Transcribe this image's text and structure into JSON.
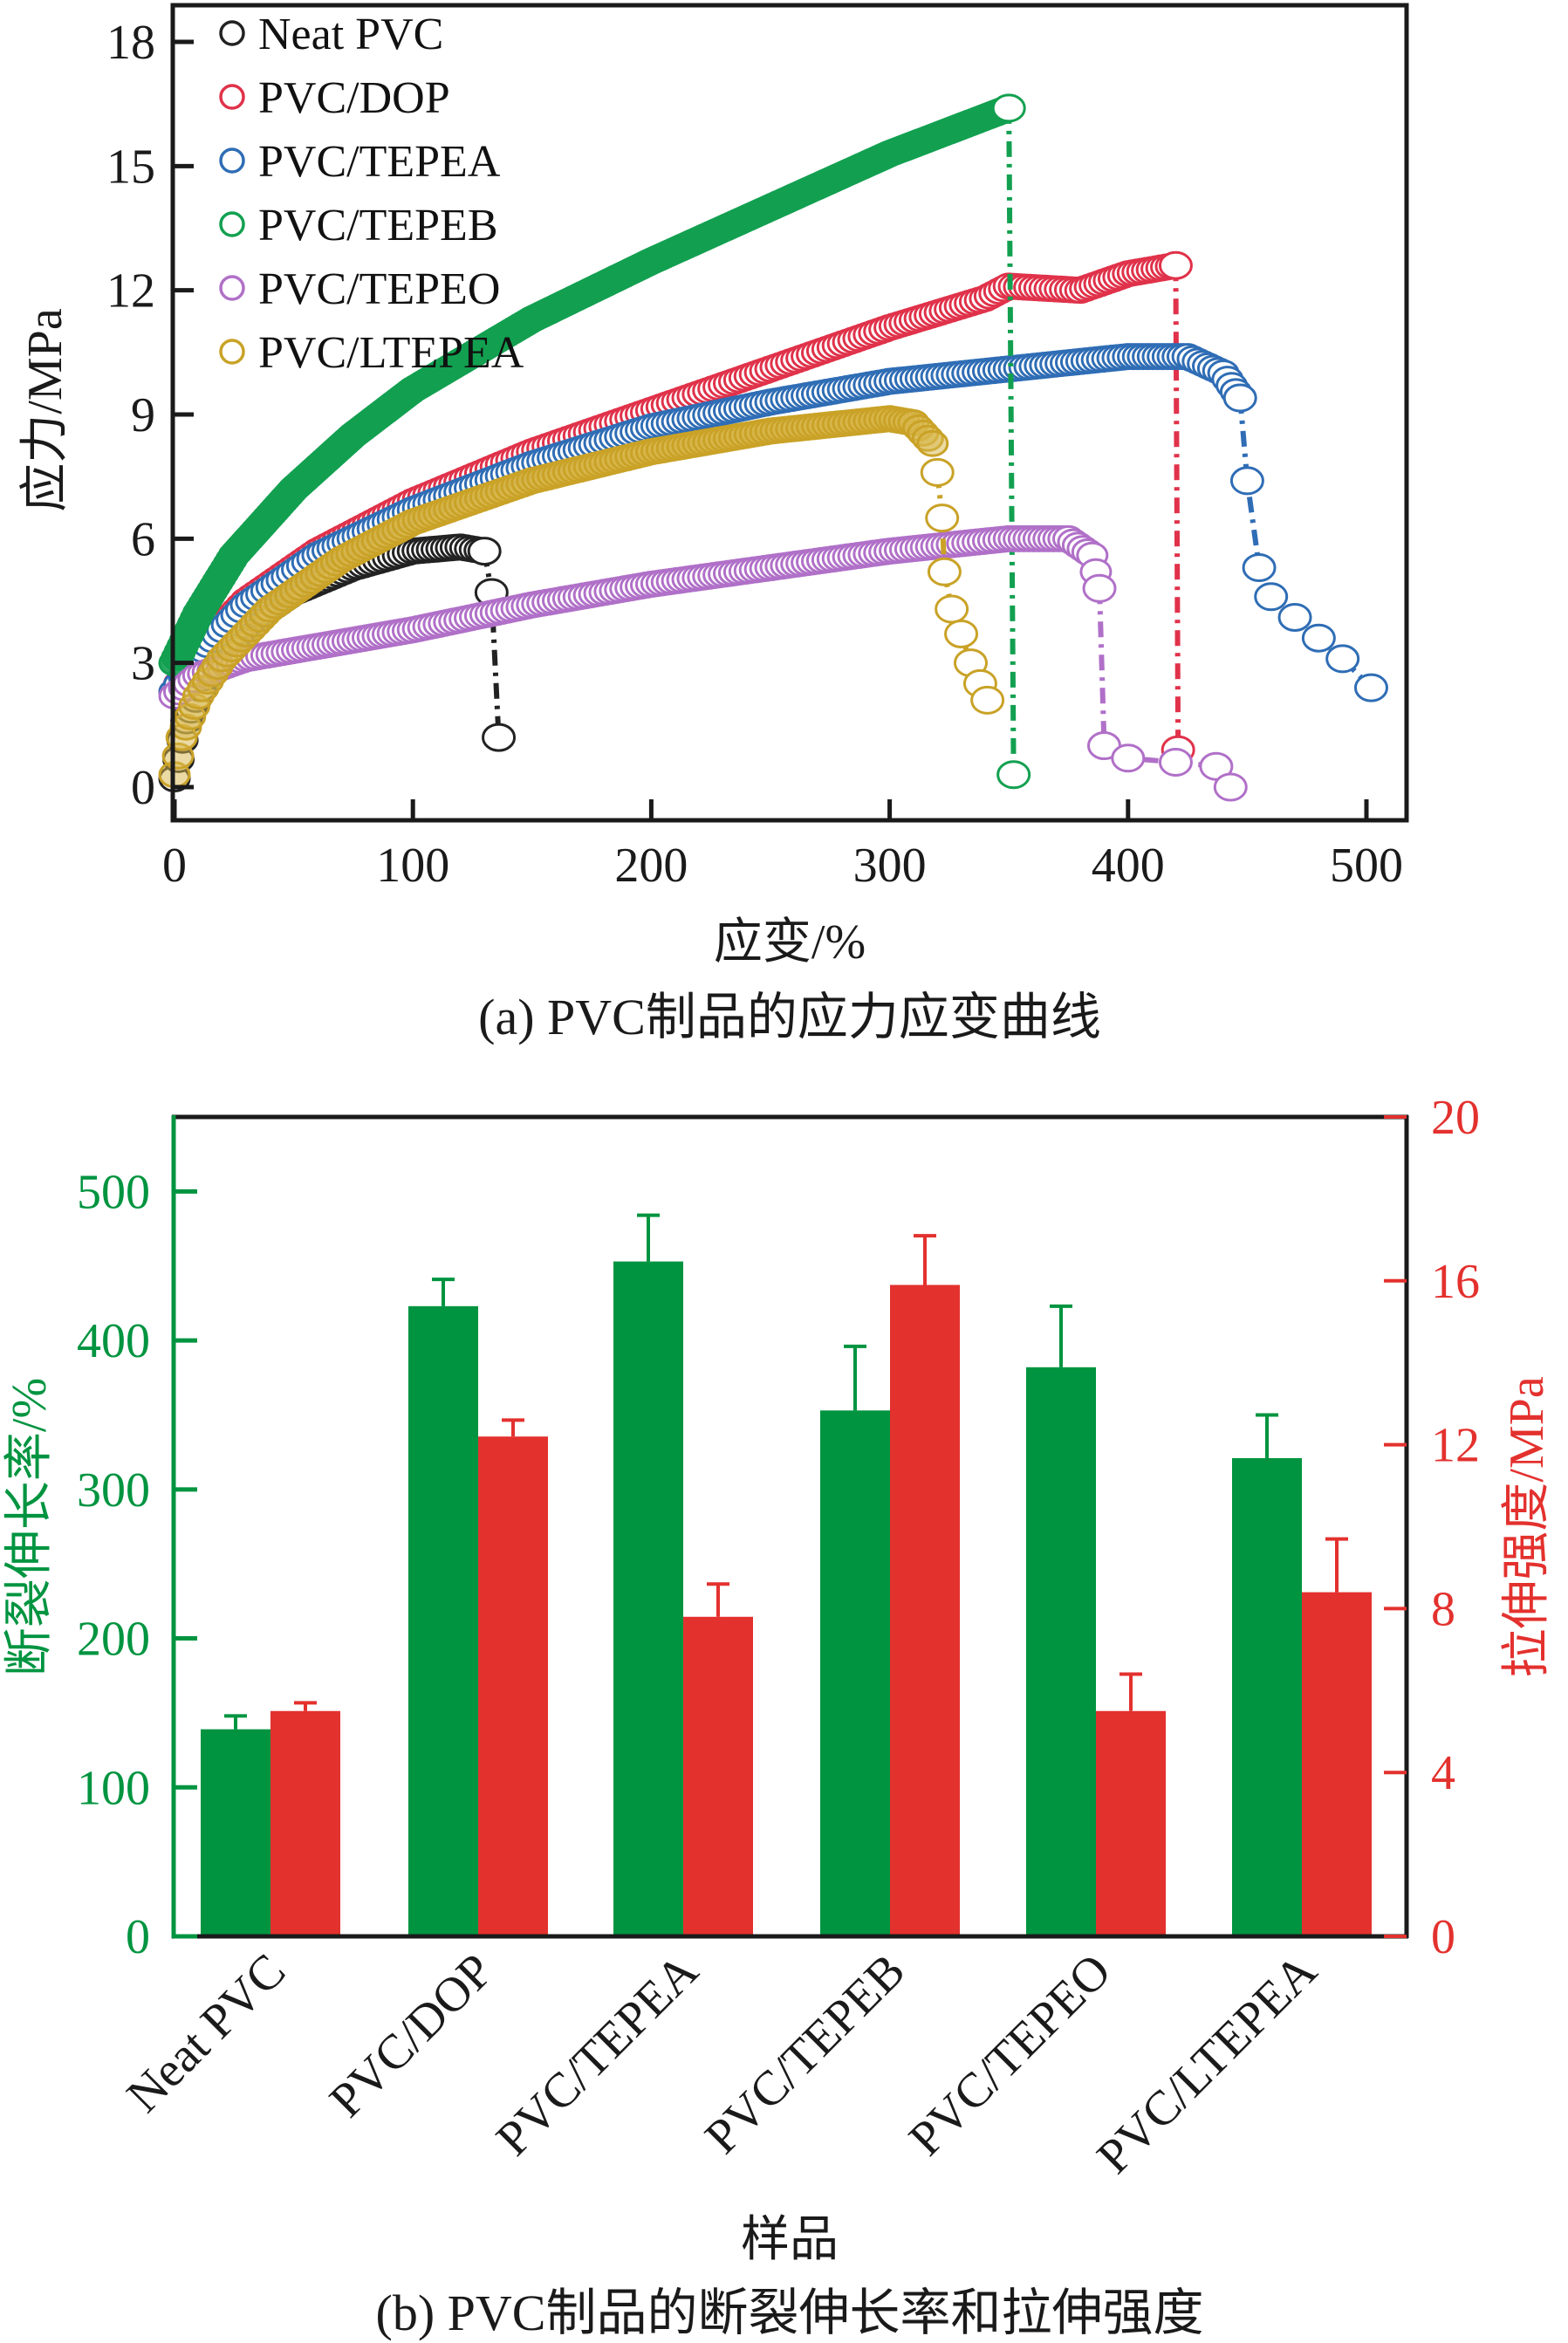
{
  "chart_data": [
    {
      "id": "a",
      "type": "scatter",
      "caption": "(a) PVC制品的应力应变曲线",
      "xlabel": "应变/%",
      "ylabel": "应力/MPa",
      "xlim": [
        0,
        520
      ],
      "ylim": [
        -1,
        19
      ],
      "xticks": [
        "0",
        "100",
        "200",
        "300",
        "400",
        "500"
      ],
      "xtick_values": [
        0,
        100,
        200,
        300,
        400,
        500
      ],
      "yticks": [
        "0",
        "3",
        "6",
        "9",
        "12",
        "15",
        "18"
      ],
      "ytick_values": [
        0,
        3,
        6,
        9,
        12,
        15,
        18
      ],
      "grid": false,
      "legend_position": "top-left",
      "series": [
        {
          "name": "Neat PVC",
          "color": "#222222",
          "curve": [
            [
              0,
              0.2
            ],
            [
              5,
              1.6
            ],
            [
              15,
              2.9
            ],
            [
              30,
              3.9
            ],
            [
              50,
              4.7
            ],
            [
              75,
              5.3
            ],
            [
              100,
              5.7
            ],
            [
              120,
              5.8
            ],
            [
              130,
              5.7
            ]
          ],
          "fracture_points": [
            [
              130,
              5.7
            ],
            [
              133,
              4.7
            ],
            [
              136,
              1.2
            ]
          ],
          "break_strain": 136
        },
        {
          "name": "PVC/DOP",
          "color": "#e0324a",
          "curve": [
            [
              0,
              2.3
            ],
            [
              10,
              3.3
            ],
            [
              30,
              4.5
            ],
            [
              60,
              5.7
            ],
            [
              100,
              6.9
            ],
            [
              150,
              8.1
            ],
            [
              200,
              9.1
            ],
            [
              250,
              10.1
            ],
            [
              300,
              11.1
            ],
            [
              340,
              11.8
            ],
            [
              350,
              12.1
            ],
            [
              380,
              12.0
            ],
            [
              400,
              12.4
            ],
            [
              420,
              12.6
            ]
          ],
          "fracture_points": [
            [
              420,
              12.6
            ],
            [
              421,
              0.9
            ]
          ],
          "break_strain": 421
        },
        {
          "name": "PVC/TEPEA",
          "color": "#2f6db5",
          "curve": [
            [
              0,
              2.3
            ],
            [
              10,
              3.2
            ],
            [
              30,
              4.4
            ],
            [
              60,
              5.6
            ],
            [
              100,
              6.7
            ],
            [
              150,
              7.8
            ],
            [
              200,
              8.7
            ],
            [
              250,
              9.3
            ],
            [
              300,
              9.8
            ],
            [
              350,
              10.1
            ],
            [
              400,
              10.4
            ],
            [
              425,
              10.4
            ],
            [
              440,
              10.0
            ],
            [
              447,
              9.4
            ]
          ],
          "fracture_points": [
            [
              447,
              9.4
            ],
            [
              450,
              7.4
            ],
            [
              455,
              5.3
            ],
            [
              460,
              4.6
            ],
            [
              470,
              4.1
            ],
            [
              480,
              3.6
            ],
            [
              490,
              3.1
            ],
            [
              502,
              2.4
            ]
          ],
          "break_strain": 502
        },
        {
          "name": "PVC/TEPEB",
          "color": "#12a050",
          "curve": [
            [
              0,
              3.0
            ],
            [
              10,
              4.2
            ],
            [
              25,
              5.6
            ],
            [
              50,
              7.2
            ],
            [
              75,
              8.5
            ],
            [
              100,
              9.6
            ],
            [
              150,
              11.3
            ],
            [
              200,
              12.7
            ],
            [
              250,
              14.0
            ],
            [
              300,
              15.3
            ],
            [
              350,
              16.4
            ]
          ],
          "fracture_points": [
            [
              350,
              16.4
            ],
            [
              352,
              0.3
            ]
          ],
          "break_strain": 352
        },
        {
          "name": "PVC/TEPEO",
          "color": "#b070c8",
          "curve": [
            [
              0,
              2.2
            ],
            [
              10,
              2.7
            ],
            [
              30,
              3.1
            ],
            [
              60,
              3.4
            ],
            [
              100,
              3.8
            ],
            [
              150,
              4.4
            ],
            [
              200,
              4.9
            ],
            [
              250,
              5.3
            ],
            [
              300,
              5.7
            ],
            [
              350,
              6.0
            ],
            [
              375,
              6.0
            ],
            [
              385,
              5.6
            ],
            [
              388,
              4.8
            ]
          ],
          "fracture_points": [
            [
              388,
              4.8
            ],
            [
              390,
              1.0
            ],
            [
              400,
              0.7
            ],
            [
              420,
              0.6
            ],
            [
              437,
              0.5
            ],
            [
              443,
              0.0
            ]
          ],
          "break_strain": 443
        },
        {
          "name": "PVC/LTEPEA",
          "color": "#c9a227",
          "curve": [
            [
              0,
              0.3
            ],
            [
              3,
              1.2
            ],
            [
              10,
              2.2
            ],
            [
              20,
              3.1
            ],
            [
              40,
              4.3
            ],
            [
              70,
              5.5
            ],
            [
              100,
              6.4
            ],
            [
              150,
              7.4
            ],
            [
              200,
              8.1
            ],
            [
              250,
              8.6
            ],
            [
              300,
              8.9
            ],
            [
              310,
              8.8
            ],
            [
              318,
              8.3
            ],
            [
              320,
              7.6
            ]
          ],
          "fracture_points": [
            [
              320,
              7.6
            ],
            [
              322,
              6.5
            ],
            [
              323,
              5.2
            ],
            [
              326,
              4.3
            ],
            [
              330,
              3.7
            ],
            [
              334,
              3.0
            ],
            [
              338,
              2.5
            ],
            [
              341,
              2.1
            ]
          ],
          "break_strain": 341
        }
      ]
    },
    {
      "id": "b",
      "type": "bar",
      "caption": "(b) PVC制品的断裂伸长率和拉伸强度",
      "xlabel": "样品",
      "categories": [
        "Neat PVC",
        "PVC/DOP",
        "PVC/TEPEA",
        "PVC/TEPEB",
        "PVC/TEPEO",
        "PVC/LTEPEA"
      ],
      "ylabel_left": "断裂伸长率/%",
      "ylabel_right": "拉伸强度/MPa",
      "ylim_left": [
        0,
        550
      ],
      "ylim_right": [
        0,
        20
      ],
      "yticks_left": [
        "0",
        "100",
        "200",
        "300",
        "400",
        "500"
      ],
      "ytick_values_left": [
        0,
        100,
        200,
        300,
        400,
        500
      ],
      "yticks_right": [
        "0",
        "4",
        "8",
        "12",
        "16",
        "20"
      ],
      "ytick_values_right": [
        0,
        4,
        8,
        12,
        16,
        20
      ],
      "grid": false,
      "series": [
        {
          "name": "断裂伸长率",
          "axis": "left",
          "color": "#009440",
          "values": [
            139,
            423,
            453,
            353,
            382,
            321
          ],
          "error_upper": [
            148,
            441,
            484,
            396,
            423,
            350
          ]
        },
        {
          "name": "拉伸强度",
          "axis": "right",
          "color": "#e3312e",
          "values": [
            5.5,
            12.2,
            7.8,
            15.9,
            5.5,
            8.4
          ],
          "error_upper": [
            5.7,
            12.6,
            8.6,
            17.1,
            6.4,
            9.7
          ]
        }
      ]
    }
  ]
}
